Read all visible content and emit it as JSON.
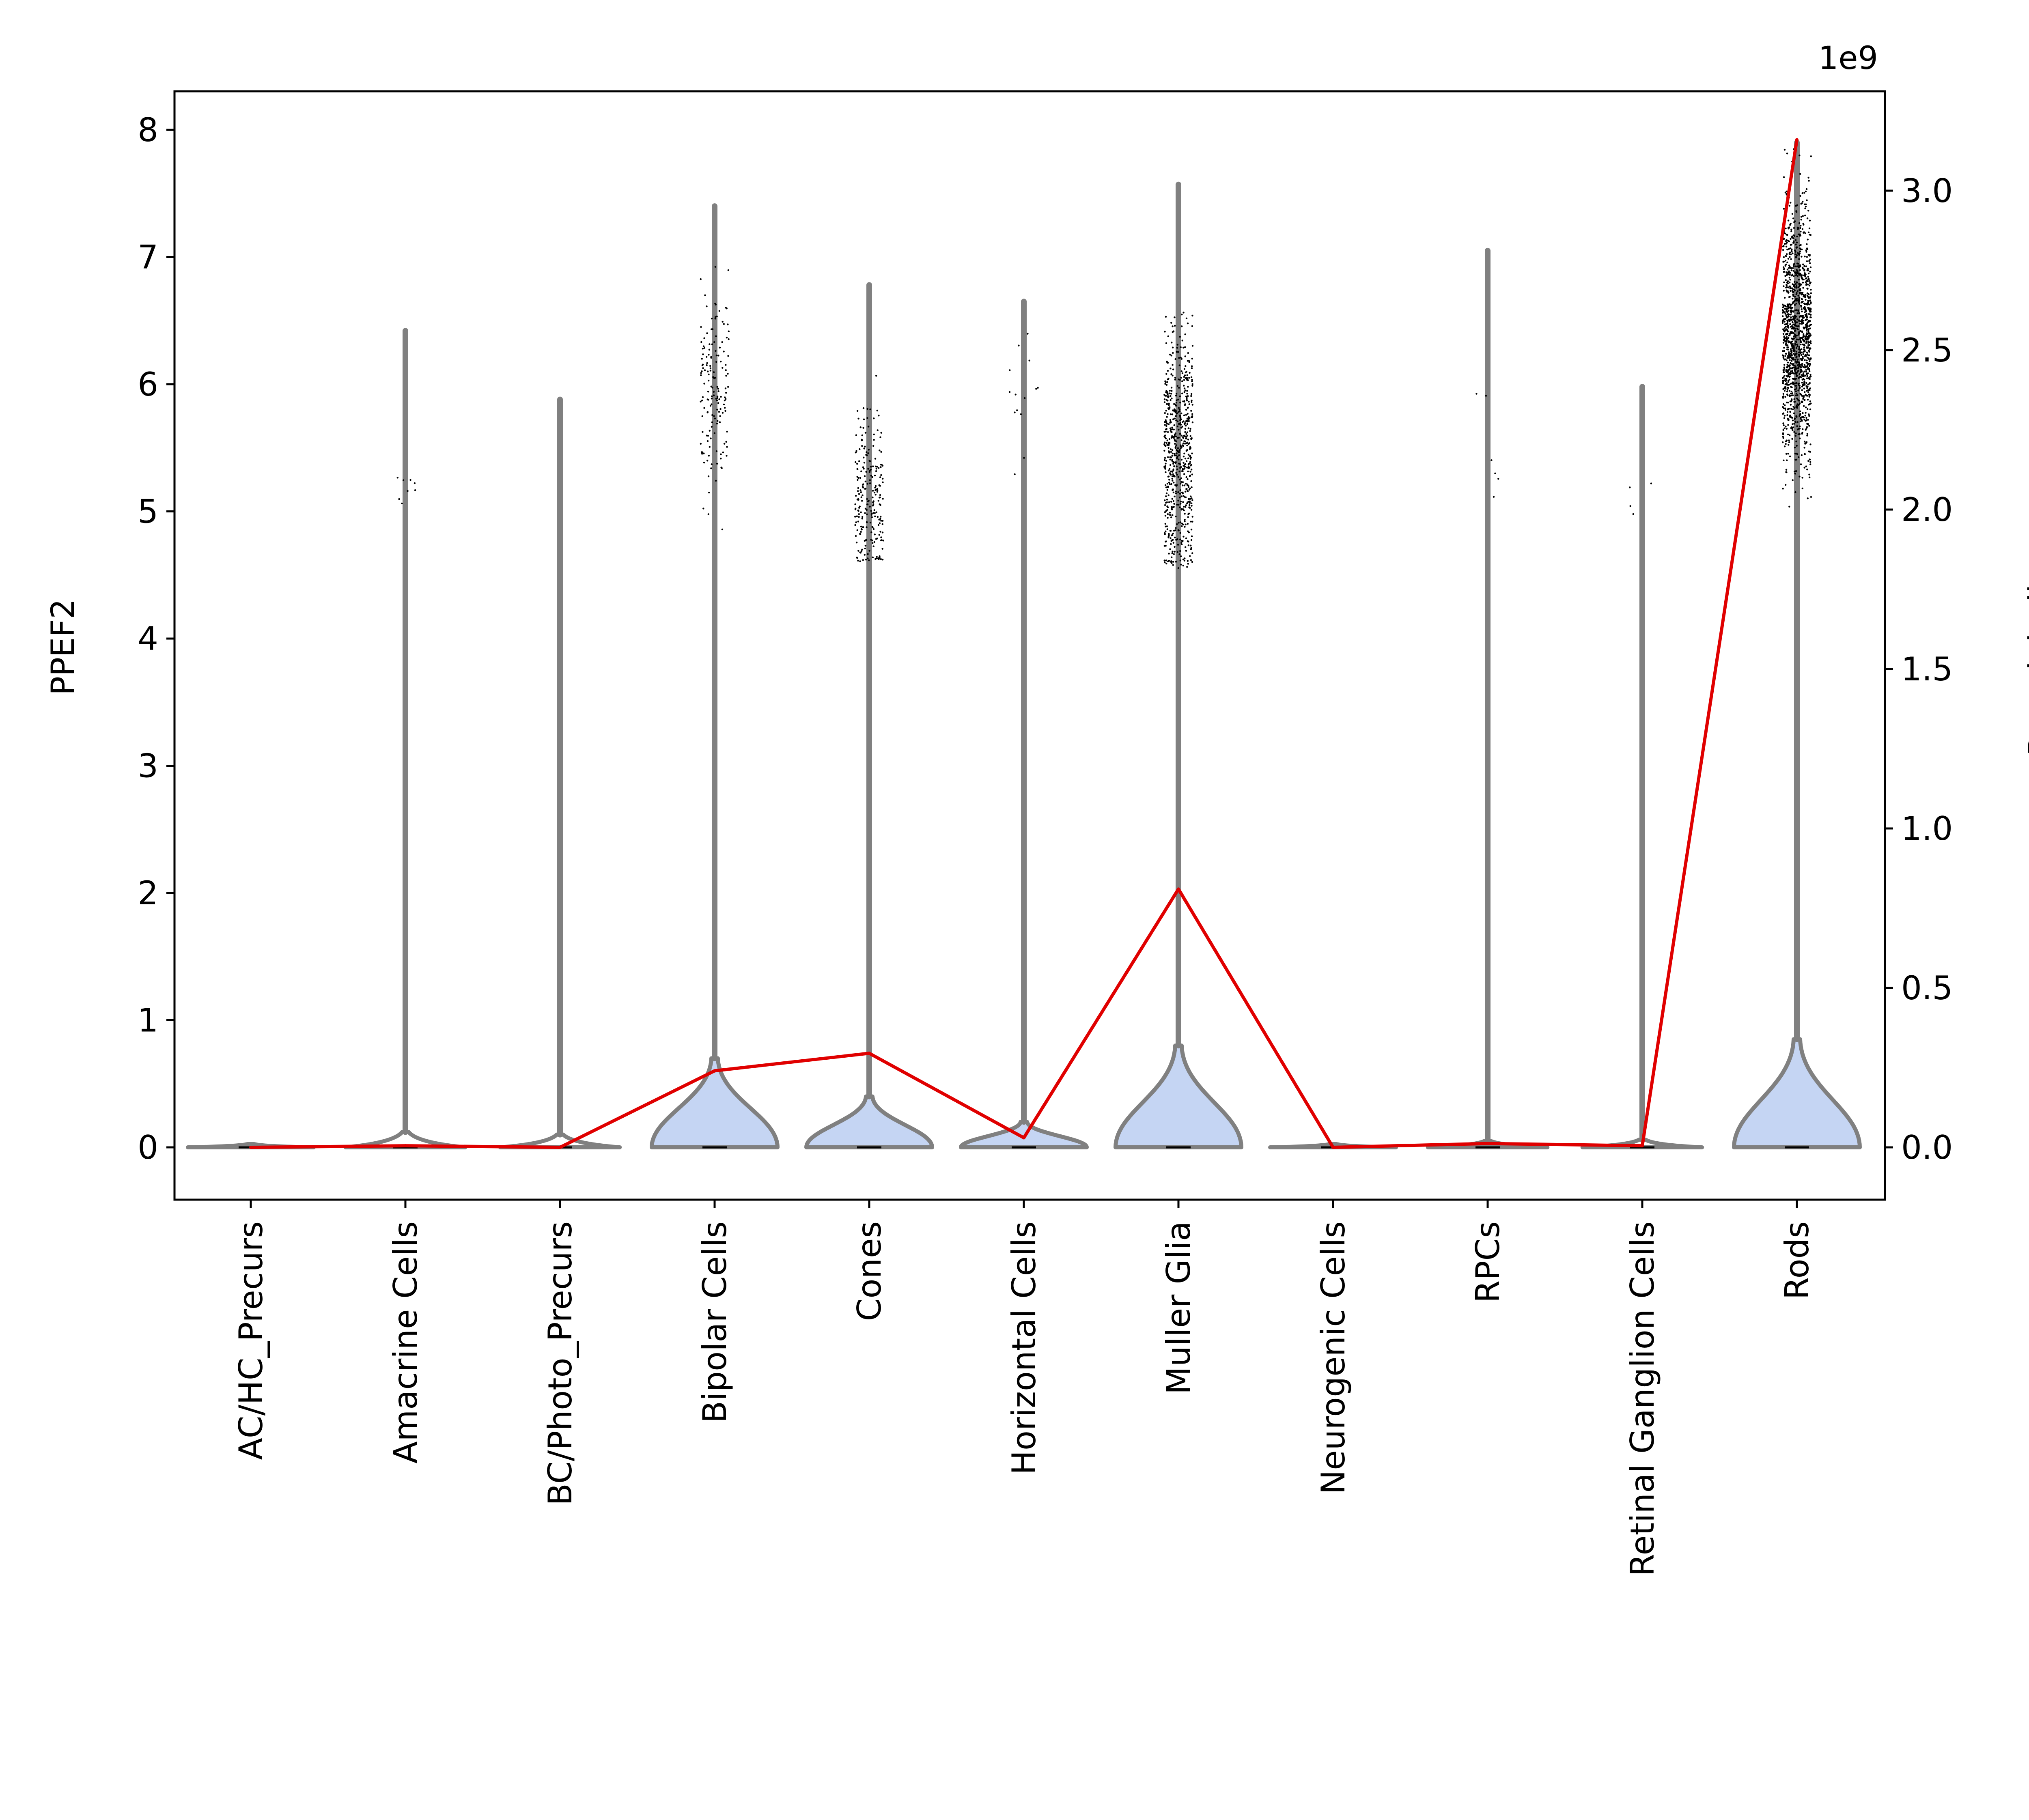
{
  "chart_data": {
    "type": "violin",
    "categories": [
      "AC/HC_Precurs",
      "Amacrine Cells",
      "BC/Photo_Precurs",
      "Bipolar Cells",
      "Cones",
      "Horizontal Cells",
      "Muller Glia",
      "Neurogenic Cells",
      "RPCs",
      "Retinal Ganglion Cells",
      "Rods"
    ],
    "ylabel": "PPEF2",
    "y2label": "Pseudobulk",
    "y2_offset_text": "1e9",
    "ylim": [
      -0.4,
      8.35
    ],
    "y2lim": [
      -0.15,
      3.32
    ],
    "yticks": [
      "0",
      "1",
      "2",
      "3",
      "4",
      "5",
      "6",
      "7",
      "8"
    ],
    "y2ticks": [
      "0.0",
      "0.5",
      "1.0",
      "1.5",
      "2.0",
      "2.5",
      "3.0"
    ],
    "violins": [
      {
        "category": "AC/HC_Precurs",
        "max": 0.02,
        "bulb_height": 0.0,
        "fill": false
      },
      {
        "category": "Amacrine Cells",
        "max": 6.42,
        "bulb_height": 0.12,
        "fill": false
      },
      {
        "category": "BC/Photo_Precurs",
        "max": 5.88,
        "bulb_height": 0.1,
        "fill": false
      },
      {
        "category": "Bipolar Cells",
        "max": 7.4,
        "bulb_height": 0.7,
        "fill": true
      },
      {
        "category": "Cones",
        "max": 6.78,
        "bulb_height": 0.4,
        "fill": true
      },
      {
        "category": "Horizontal Cells",
        "max": 6.65,
        "bulb_height": 0.2,
        "fill": true
      },
      {
        "category": "Muller Glia",
        "max": 7.57,
        "bulb_height": 0.8,
        "fill": true
      },
      {
        "category": "Neurogenic Cells",
        "max": 0.02,
        "bulb_height": 0.0,
        "fill": false
      },
      {
        "category": "RPCs",
        "max": 7.05,
        "bulb_height": 0.05,
        "fill": false
      },
      {
        "category": "Retinal Ganglion Cells",
        "max": 5.98,
        "bulb_height": 0.06,
        "fill": false
      },
      {
        "category": "Rods",
        "max": 7.9,
        "bulb_height": 0.85,
        "fill": true
      }
    ],
    "points": [
      {
        "category": "Amacrine Cells",
        "n": 8,
        "min": 4.85,
        "max": 5.45,
        "center": 5.15
      },
      {
        "category": "Bipolar Cells",
        "n": 160,
        "min": 4.7,
        "max": 7.3,
        "center": 5.95
      },
      {
        "category": "Cones",
        "n": 240,
        "min": 4.6,
        "max": 6.7,
        "center": 5.1
      },
      {
        "category": "Horizontal Cells",
        "n": 14,
        "min": 4.7,
        "max": 6.6,
        "center": 5.8
      },
      {
        "category": "Muller Glia",
        "n": 700,
        "min": 4.55,
        "max": 7.55,
        "center": 5.45
      },
      {
        "category": "RPCs",
        "n": 6,
        "min": 4.8,
        "max": 6.55,
        "center": 5.5
      },
      {
        "category": "Retinal Ganglion Cells",
        "n": 4,
        "min": 4.85,
        "max": 5.95,
        "center": 5.3
      },
      {
        "category": "Rods",
        "n": 1400,
        "min": 4.8,
        "max": 7.9,
        "center": 6.4
      }
    ],
    "series": [
      {
        "axis": "right",
        "values": [
          0.0,
          0.005,
          0.0,
          0.24,
          0.295,
          0.03,
          0.81,
          0.0,
          0.012,
          0.005,
          3.16
        ]
      }
    ],
    "colors": {
      "violin_fill": "#c5d5f3",
      "violin_edge": "#808080",
      "line": "#e00000",
      "points": "#000000"
    }
  }
}
